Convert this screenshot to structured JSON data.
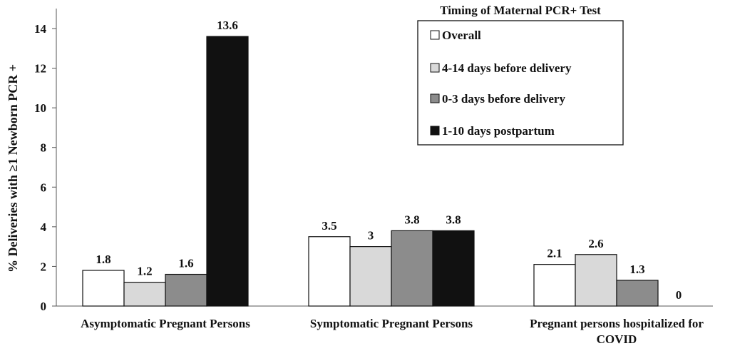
{
  "chart_data": {
    "type": "bar",
    "ylabel": "% Deliveries with ≥1 Newborn PCR +",
    "xlabel": "",
    "ylim": [
      0,
      14
    ],
    "yticks": [
      0,
      2,
      4,
      6,
      8,
      10,
      12,
      14
    ],
    "grid": false,
    "legend_position": "top-right",
    "legend_title": "Timing of Maternal PCR+ Test",
    "categories": [
      [
        "Asymptomatic Pregnant Persons"
      ],
      [
        "Symptomatic Pregnant Persons"
      ],
      [
        "Pregnant persons hospitalized for",
        "COVID"
      ]
    ],
    "series": [
      {
        "name": "Overall",
        "color": "#ffffff",
        "values": [
          1.8,
          3.5,
          2.1
        ]
      },
      {
        "name": "4-14 days before delivery",
        "color": "#d9d9d9",
        "values": [
          1.2,
          3,
          2.6
        ]
      },
      {
        "name": "0-3 days before delivery",
        "color": "#8c8c8c",
        "values": [
          1.6,
          3.8,
          1.3
        ]
      },
      {
        "name": "1-10 days postpartum",
        "color": "#111111",
        "values": [
          13.6,
          3.8,
          0
        ]
      }
    ]
  }
}
